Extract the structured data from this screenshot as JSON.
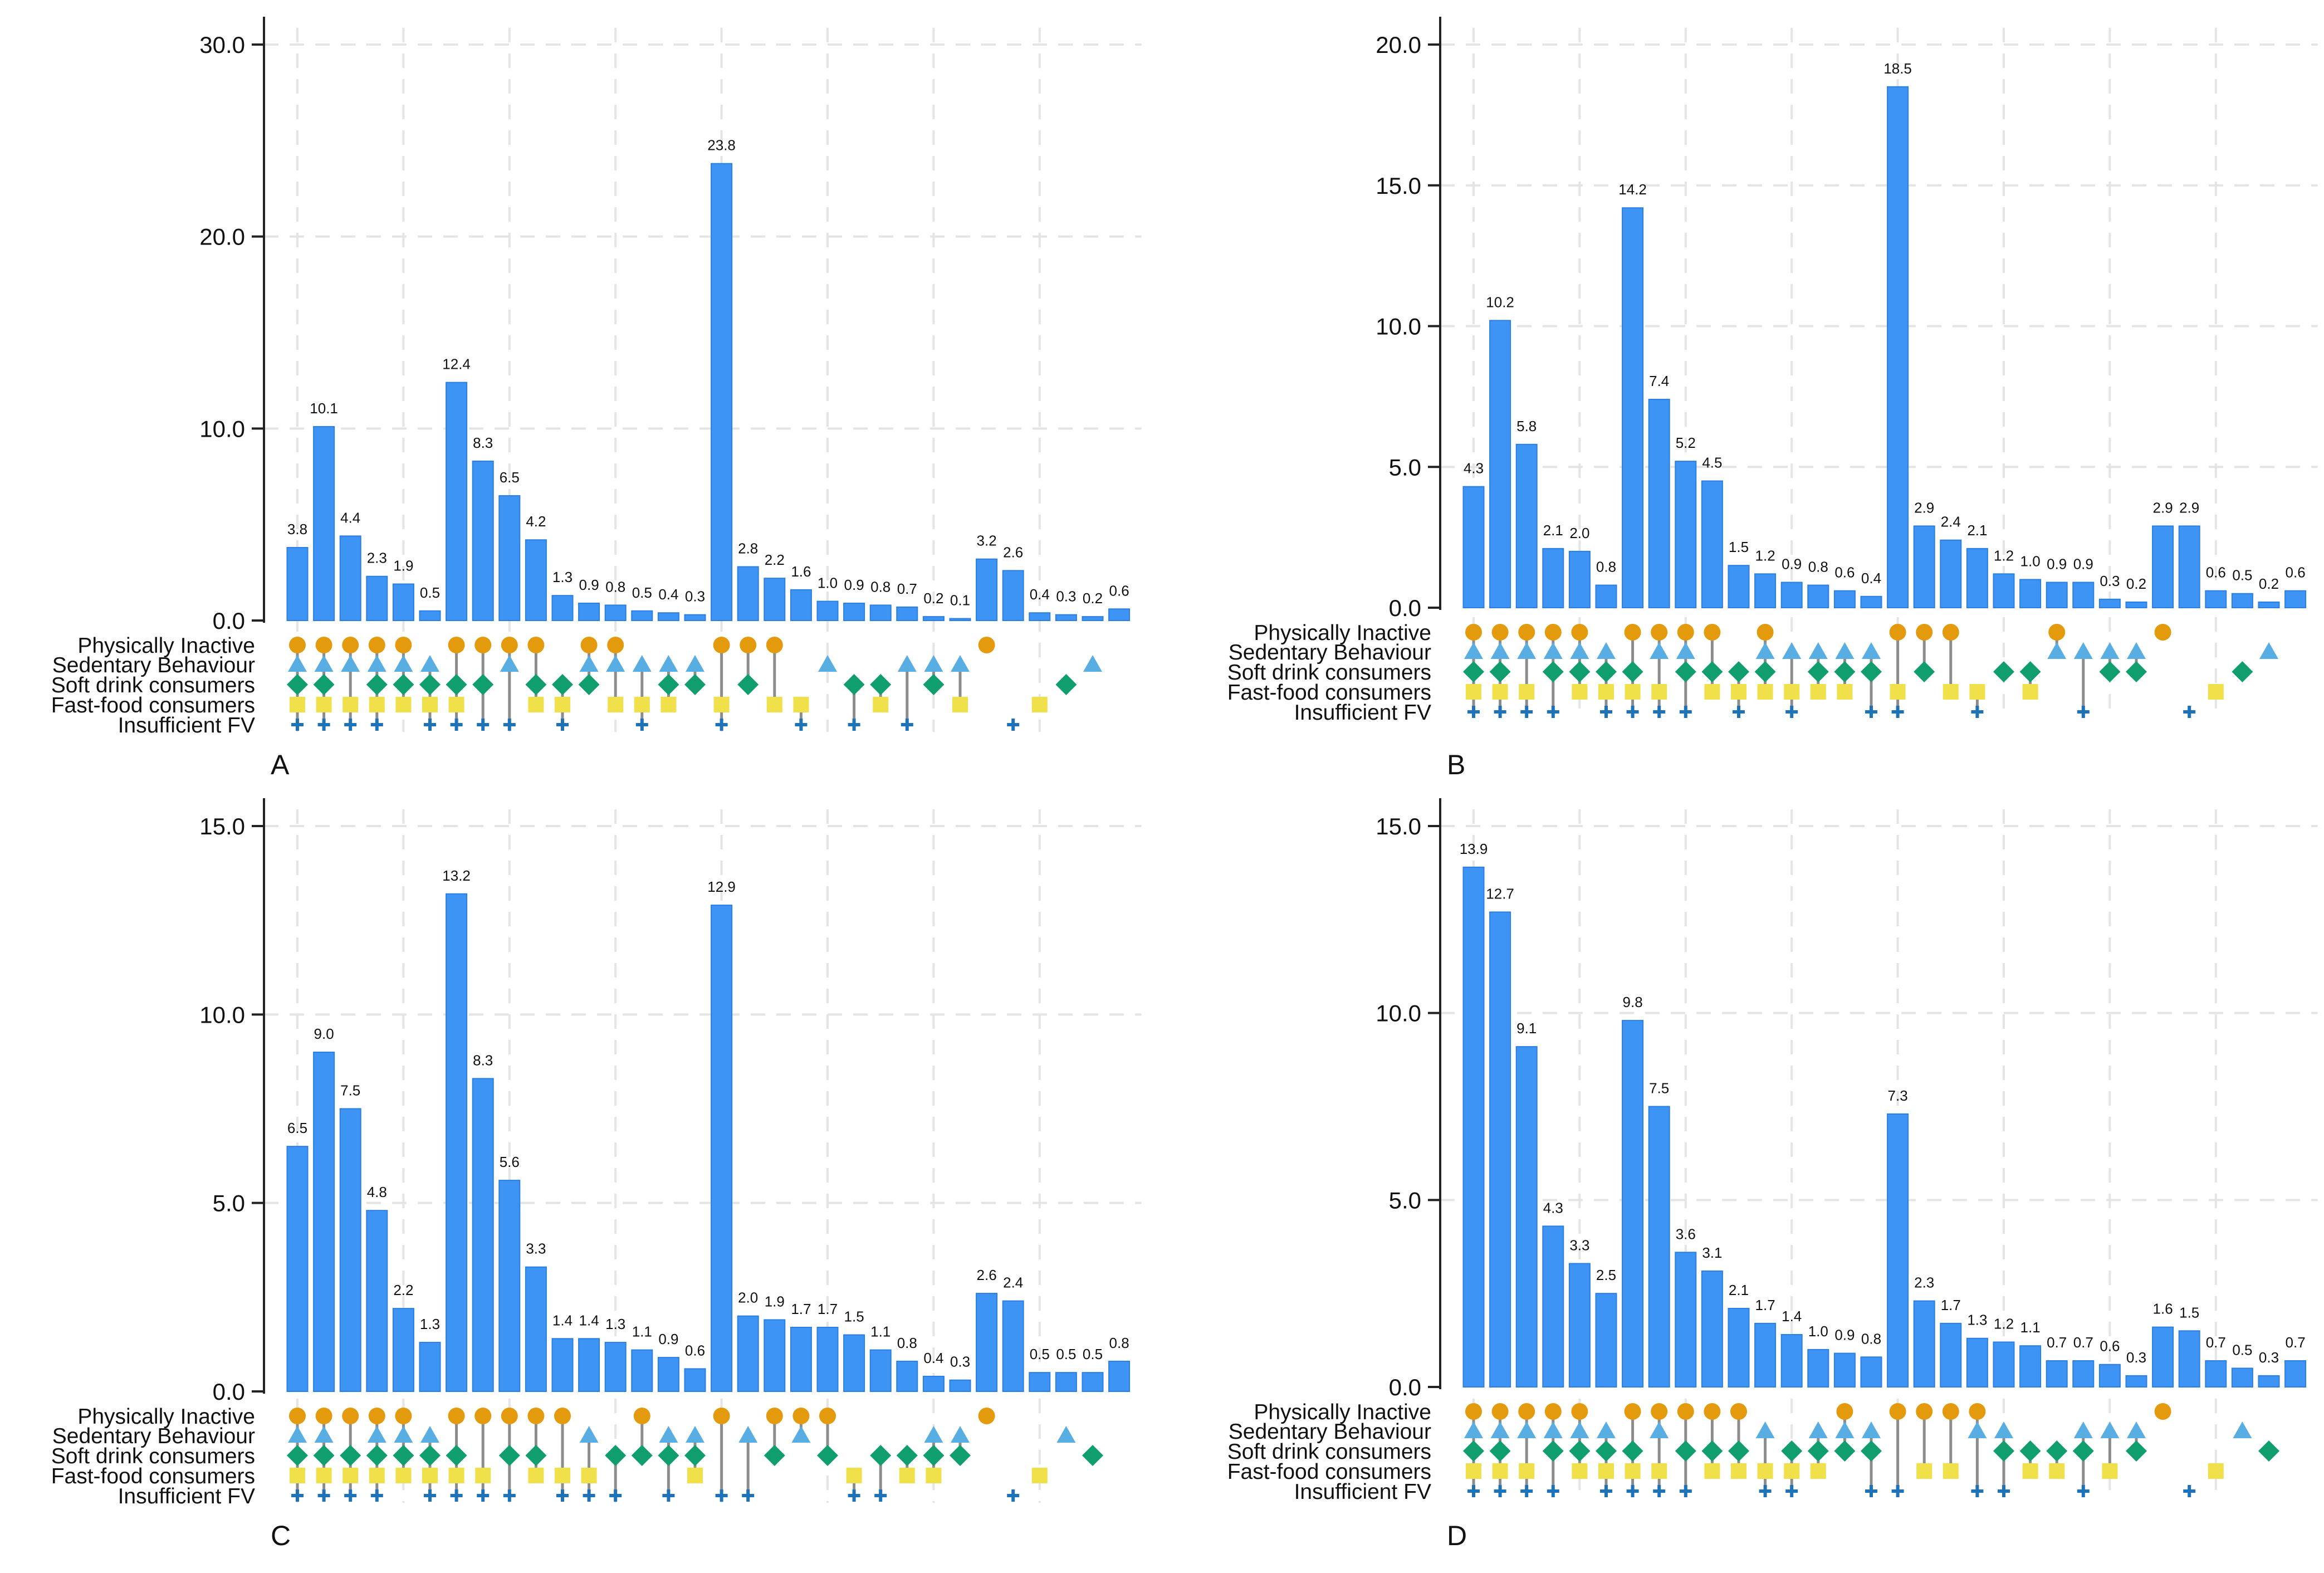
{
  "figure": {
    "categories": [
      "Physically Inactive",
      "Sedentary Behaviour",
      "Soft drink consumers",
      "Fast-food consumers",
      "Insufficient FV"
    ],
    "colors": {
      "bar_fill": "#3D94F5",
      "bar_stroke": "#2C7FE0",
      "physically_inactive": "#E39A0C",
      "sedentary_behaviour": "#58AEE3",
      "soft_drink": "#109E6E",
      "fast_food": "#F0E14A",
      "insufficient_fv": "#1E72B8",
      "connector": "#8C8C8C",
      "grid": "#E4E4E4",
      "axis": "#222222"
    },
    "icons": {
      "physically_inactive": "circle-icon",
      "sedentary_behaviour": "triangle-icon",
      "soft_drink": "diamond-icon",
      "fast_food": "square-icon",
      "insufficient_fv": "plus-icon"
    }
  },
  "chart_data": [
    {
      "type": "bar",
      "panel_label": "A",
      "ylim": [
        0,
        30
      ],
      "yticks": [
        0,
        10,
        20,
        30
      ],
      "ytick_labels": [
        "0.0",
        "10.0",
        "20.0",
        "30.0"
      ],
      "xlabel": "",
      "ylabel": "",
      "values": [
        3.8,
        10.1,
        4.4,
        2.3,
        1.9,
        0.5,
        12.4,
        8.3,
        6.5,
        4.2,
        1.3,
        0.9,
        0.8,
        0.5,
        0.4,
        0.3,
        23.8,
        2.8,
        2.2,
        1.6,
        1.0,
        0.9,
        0.8,
        0.7,
        0.2,
        0.1,
        3.2,
        2.6,
        0.4,
        0.3,
        0.2,
        0.6
      ],
      "value_labels": [
        "3.8",
        "10.1",
        "4.4",
        "2.3",
        "1.9",
        "0.5",
        "12.4",
        "8.3",
        "6.5",
        "4.2",
        "1.3",
        "0.9",
        "0.8",
        "0.5",
        "0.4",
        "0.3",
        "23.8",
        "2.8",
        "2.2",
        "1.6",
        "1.0",
        "0.9",
        "0.8",
        "0.7",
        "0.2",
        "0.1",
        "3.2",
        "2.6",
        "0.4",
        "0.3",
        "0.2",
        "0.6"
      ],
      "combinations": [
        "PSDFI",
        "PSDFI",
        "PSFI",
        "PSDFI",
        "PSDF",
        "SDFI",
        "PDFI",
        "PDI",
        "PSI",
        "PDF",
        "DFI",
        "PSD",
        "PSF",
        "SFI",
        "SDF",
        "SD",
        "PFI",
        "PD",
        "PF",
        "FI",
        "S",
        "DI",
        "DF",
        "SI",
        "SD",
        "SF",
        "P",
        "I",
        "F",
        "D",
        "S",
        ""
      ],
      "grid": true
    },
    {
      "type": "bar",
      "panel_label": "B",
      "ylim": [
        0,
        20
      ],
      "yticks": [
        0,
        5,
        10,
        15,
        20
      ],
      "ytick_labels": [
        "0.0",
        "5.0",
        "10.0",
        "15.0",
        "20.0"
      ],
      "xlabel": "",
      "ylabel": "",
      "values": [
        4.3,
        10.2,
        5.8,
        2.1,
        2.0,
        0.8,
        14.2,
        7.4,
        5.2,
        4.5,
        1.5,
        1.2,
        0.9,
        0.8,
        0.6,
        0.4,
        18.5,
        2.9,
        2.4,
        2.1,
        1.2,
        1.0,
        0.9,
        0.9,
        0.3,
        0.2,
        2.9,
        2.9,
        0.6,
        0.5,
        0.2,
        0.6
      ],
      "value_labels": [
        "4.3",
        "10.2",
        "5.8",
        "2.1",
        "2.0",
        "0.8",
        "14.2",
        "7.4",
        "5.2",
        "4.5",
        "1.5",
        "1.2",
        "0.9",
        "0.8",
        "0.6",
        "0.4",
        "18.5",
        "2.9",
        "2.4",
        "2.1",
        "1.2",
        "1.0",
        "0.9",
        "0.9",
        "0.3",
        "0.2",
        "2.9",
        "2.9",
        "0.6",
        "0.5",
        "0.2",
        "0.6"
      ],
      "combinations": [
        "PSDFI",
        "PSDFI",
        "PSFI",
        "PSDI",
        "PSDF",
        "SDFI",
        "PDFI",
        "PSFI",
        "PSDI",
        "PDF",
        "DFI",
        "PSDF",
        "SFI",
        "SDF",
        "SDF",
        "SDI",
        "PFI",
        "PD",
        "PF",
        "FI",
        "D",
        "DF",
        "PS",
        "SI",
        "SD",
        "SD",
        "P",
        "I",
        "F",
        "D",
        "S",
        ""
      ],
      "grid": true
    },
    {
      "type": "bar",
      "panel_label": "C",
      "ylim": [
        0,
        15
      ],
      "yticks": [
        0,
        5,
        10,
        15
      ],
      "ytick_labels": [
        "0.0",
        "5.0",
        "10.0",
        "15.0"
      ],
      "xlabel": "",
      "ylabel": "",
      "values": [
        6.5,
        9.0,
        7.5,
        4.8,
        2.2,
        1.3,
        13.2,
        8.3,
        5.6,
        3.3,
        1.4,
        1.4,
        1.3,
        1.1,
        0.9,
        0.6,
        12.9,
        2.0,
        1.9,
        1.7,
        1.7,
        1.5,
        1.1,
        0.8,
        0.4,
        0.3,
        2.6,
        2.4,
        0.5,
        0.5,
        0.5,
        0.8
      ],
      "value_labels": [
        "6.5",
        "9.0",
        "7.5",
        "4.8",
        "2.2",
        "1.3",
        "13.2",
        "8.3",
        "5.6",
        "3.3",
        "1.4",
        "1.4",
        "1.3",
        "1.1",
        "0.9",
        "0.6",
        "12.9",
        "2.0",
        "1.9",
        "1.7",
        "1.7",
        "1.5",
        "1.1",
        "0.8",
        "0.4",
        "0.3",
        "2.6",
        "2.4",
        "0.5",
        "0.5",
        "0.5",
        "0.8"
      ],
      "combinations": [
        "PSDFI",
        "PSDFI",
        "PDFI",
        "PSDFI",
        "PSDF",
        "SDFI",
        "PDFI",
        "PFI",
        "PDI",
        "PDF",
        "PFI",
        "SFI",
        "DI",
        "PD",
        "SDI",
        "SDF",
        "PI",
        "SI",
        "PD",
        "PS",
        "PD",
        "FI",
        "DI",
        "DF",
        "SDF",
        "SD",
        "P",
        "I",
        "F",
        "S",
        "D",
        ""
      ],
      "grid": true
    },
    {
      "type": "bar",
      "panel_label": "D",
      "ylim": [
        0,
        15
      ],
      "yticks": [
        0,
        5,
        10,
        15
      ],
      "ytick_labels": [
        "0.0",
        "5.0",
        "10.0",
        "15.0"
      ],
      "xlabel": "",
      "ylabel": "",
      "values": [
        13.9,
        12.7,
        9.1,
        4.3,
        3.3,
        2.5,
        9.8,
        7.5,
        3.6,
        3.1,
        2.1,
        1.7,
        1.4,
        1.0,
        0.9,
        0.8,
        7.3,
        2.3,
        1.7,
        1.3,
        1.2,
        1.1,
        0.7,
        0.7,
        0.6,
        0.3,
        1.6,
        1.5,
        0.7,
        0.5,
        0.3,
        0.7
      ],
      "value_labels": [
        "13.9",
        "12.7",
        "9.1",
        "4.3",
        "3.3",
        "2.5",
        "9.8",
        "7.5",
        "3.6",
        "3.1",
        "2.1",
        "1.7",
        "1.4",
        "1.0",
        "0.9",
        "0.8",
        "7.3",
        "2.3",
        "1.7",
        "1.3",
        "1.2",
        "1.1",
        "0.7",
        "0.7",
        "0.6",
        "0.3",
        "1.6",
        "1.5",
        "0.7",
        "0.5",
        "0.3",
        "0.7"
      ],
      "combinations": [
        "PSDFI",
        "PSDFI",
        "PSFI",
        "PSDI",
        "PSDF",
        "SDFI",
        "PDFI",
        "PSFI",
        "PDI",
        "PDF",
        "PDF",
        "SFI",
        "DFI",
        "SDF",
        "PSD",
        "SDI",
        "PI",
        "PF",
        "PF",
        "PSI",
        "SDI",
        "DF",
        "DF",
        "SDI",
        "SF",
        "SD",
        "P",
        "I",
        "F",
        "S",
        "D",
        ""
      ],
      "grid": true
    }
  ]
}
